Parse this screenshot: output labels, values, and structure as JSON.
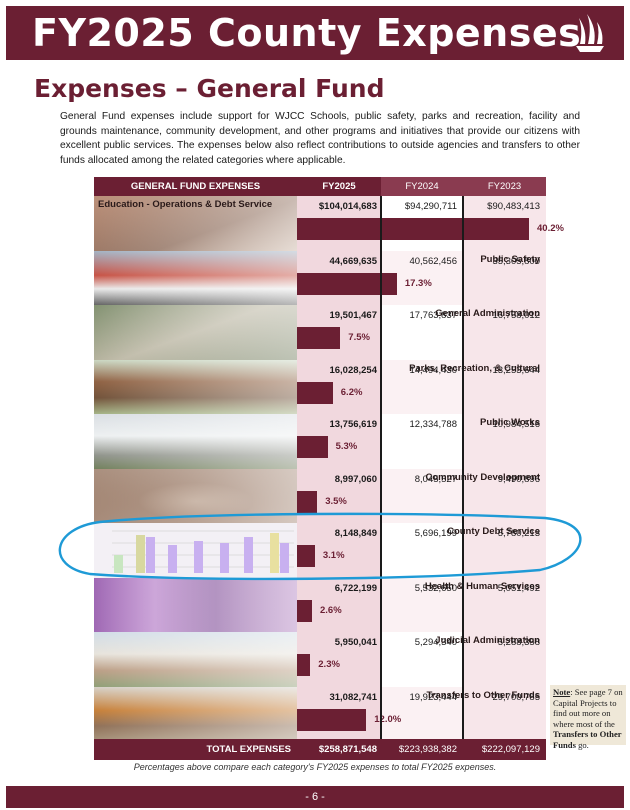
{
  "header": {
    "title": "FY2025 County Expenses",
    "logo_icon": "sailing-ship-icon"
  },
  "section": {
    "title": "Expenses – General Fund",
    "intro": "General Fund expenses include support for WJCC Schools, public safety, parks and recreation, facility and grounds maintenance, community development, and other programs and initiatives that provide our citizens with excellent public services. The expenses below also reflect contributions to outside agencies and transfers to other funds allocated among the related categories where applicable."
  },
  "table": {
    "headers": [
      "GENERAL FUND EXPENSES",
      "FY2025",
      "FY2024",
      "FY2023"
    ],
    "rows": [
      {
        "label": "Education - Operations & Debt Service",
        "fy2025": "$104,014,683",
        "fy2024": "$94,290,711",
        "fy2023": "$90,483,413",
        "pct": "40.2%",
        "pct_value": 40.2
      },
      {
        "label": "Public Safety",
        "fy2025": "44,669,635",
        "fy2024": "40,562,456",
        "fy2023": "35,305,800",
        "pct": "17.3%",
        "pct_value": 17.3
      },
      {
        "label": "General Administration",
        "fy2025": "19,501,467",
        "fy2024": "17,763,837",
        "fy2023": "16,758,012",
        "pct": "7.5%",
        "pct_value": 7.5
      },
      {
        "label": "Parks, Recreation, & Cultural",
        "fy2025": "16,028,254",
        "fy2024": "14,494,430",
        "fy2023": "13,253,644",
        "pct": "6.2%",
        "pct_value": 6.2
      },
      {
        "label": "Public Works",
        "fy2025": "13,756,619",
        "fy2024": "12,334,788",
        "fy2023": "10,984,516",
        "pct": "5.3%",
        "pct_value": 5.3
      },
      {
        "label": "Community Development",
        "fy2025": "8,997,060",
        "fy2024": "8,045,527",
        "fy2023": "9,490,896",
        "pct": "3.5%",
        "pct_value": 3.5
      },
      {
        "label": "County Debt Service",
        "fy2025": "8,148,849",
        "fy2024": "5,696,199",
        "fy2023": "5,780,213",
        "pct": "3.1%",
        "pct_value": 3.1
      },
      {
        "label": "Health & Human Services",
        "fy2025": "6,722,199",
        "fy2024": "5,532,650",
        "fy2023": "5,051,492",
        "pct": "2.6%",
        "pct_value": 2.6
      },
      {
        "label": "Judicial Administration",
        "fy2025": "5,950,041",
        "fy2024": "5,294,340",
        "fy2023": "5,288,358",
        "pct": "2.3%",
        "pct_value": 2.3
      },
      {
        "label": "Transfers to Other Funds",
        "fy2025": "31,082,741",
        "fy2024": "19,923,444",
        "fy2023": "29,700,785",
        "pct": "12.0%",
        "pct_value": 12.0
      }
    ],
    "total": {
      "label": "TOTAL EXPENSES",
      "fy2025": "$258,871,548",
      "fy2024": "$223,938,382",
      "fy2023": "$222,097,129"
    },
    "footnote": "Percentages above compare each category's FY2025 expenses to total FY2025 expenses."
  },
  "note": {
    "lead": "Note",
    "text1": ": See page 7 on Capital Projects to find out more on where most of the ",
    "bold": "Transfers to Other Funds",
    "text2": " go."
  },
  "page_number": "- 6 -",
  "colors": {
    "brand": "#6b1f33",
    "brand_light": "#8a3b50",
    "ink": "#1e9ad6"
  }
}
